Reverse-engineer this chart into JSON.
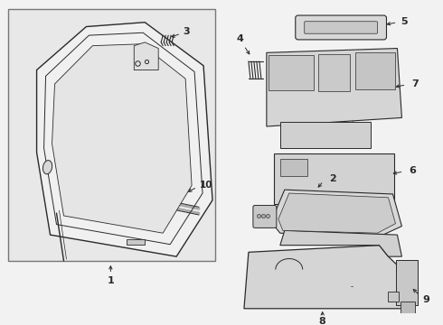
{
  "bg_color": "#f2f2f2",
  "box_bg": "#e8e8e8",
  "lc": "#2a2a2a",
  "white": "#ffffff",
  "gray1": "#d0d0d0",
  "gray2": "#c0c0c0",
  "gray3": "#b0b0b0"
}
